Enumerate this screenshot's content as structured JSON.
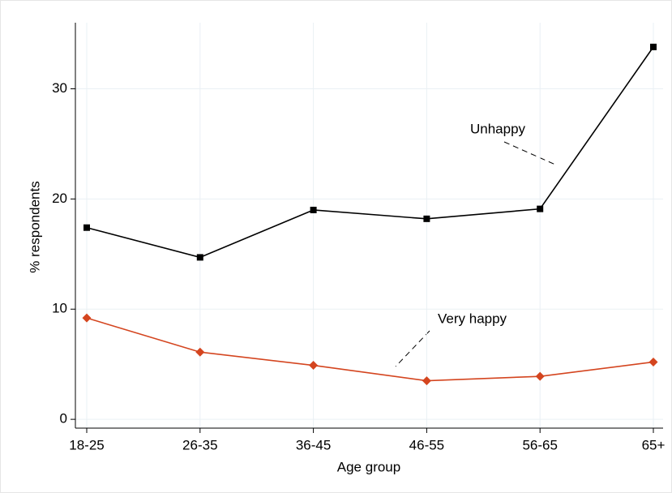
{
  "chart_data": {
    "type": "line",
    "x_label": "Age group",
    "y_label": "% respondents",
    "categories": [
      "18-25",
      "26-35",
      "36-45",
      "46-55",
      "56-65",
      "65+"
    ],
    "series": [
      {
        "name": "Unhappy",
        "color": "#000000",
        "marker": "square",
        "values": [
          17.4,
          14.7,
          19.0,
          18.2,
          19.1,
          33.8
        ]
      },
      {
        "name": "Very happy",
        "color": "#d4451f",
        "marker": "diamond",
        "values": [
          9.2,
          6.1,
          4.9,
          3.5,
          3.9,
          5.2
        ]
      }
    ],
    "ylim": [
      -0.8,
      36
    ],
    "yticks": [
      0,
      10,
      20,
      30
    ],
    "grid": true
  }
}
